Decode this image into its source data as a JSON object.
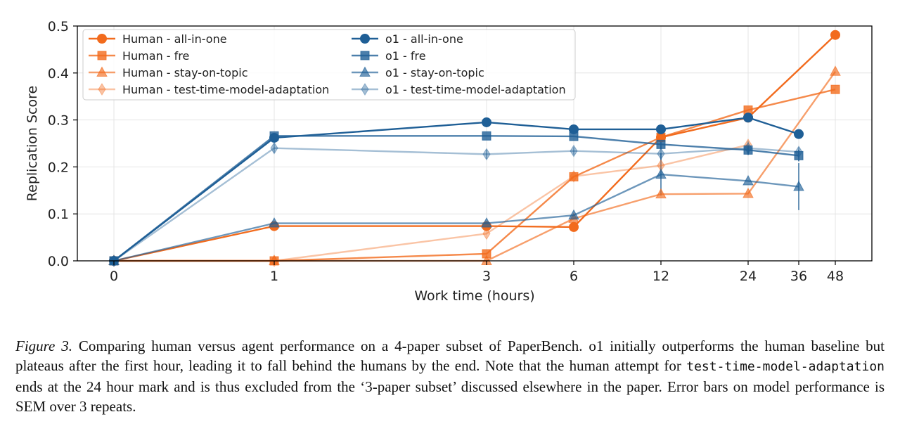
{
  "chart_data": {
    "type": "line",
    "xlabel": "Work time (hours)",
    "ylabel": "Replication Score",
    "xticks": [
      "0",
      "1",
      "3",
      "6",
      "12",
      "24",
      "36",
      "48"
    ],
    "yticks": [
      "0.0",
      "0.1",
      "0.2",
      "0.3",
      "0.4",
      "0.5"
    ],
    "ylim": [
      0,
      0.5
    ],
    "grid": true,
    "legend_position": "top-left",
    "series": [
      {
        "name": "Human - all-in-one",
        "marker": "circle",
        "color": "#f26b1d",
        "opacity": 1.0,
        "x": [
          "0",
          "1",
          "3",
          "6",
          "12",
          "24",
          "48"
        ],
        "y": [
          0.0,
          0.074,
          0.074,
          0.072,
          0.263,
          0.305,
          0.481
        ]
      },
      {
        "name": "Human - fre",
        "marker": "square",
        "color": "#f26b1d",
        "opacity": 0.8,
        "x": [
          "0",
          "1",
          "3",
          "6",
          "12",
          "24",
          "48"
        ],
        "y": [
          0.0,
          0.0,
          0.015,
          0.179,
          0.263,
          0.321,
          0.365
        ]
      },
      {
        "name": "Human - stay-on-topic",
        "marker": "triangle",
        "color": "#f26b1d",
        "opacity": 0.65,
        "x": [
          "0",
          "1",
          "3",
          "6",
          "12",
          "24",
          "48"
        ],
        "y": [
          0.0,
          0.0,
          0.0,
          0.09,
          0.142,
          0.143,
          0.403
        ]
      },
      {
        "name": "Human - test-time-model-adaptation",
        "marker": "diamond",
        "color": "#f26b1d",
        "opacity": 0.4,
        "x": [
          "0",
          "1",
          "3",
          "6",
          "12",
          "24"
        ],
        "y": [
          0.0,
          0.0,
          0.058,
          0.18,
          0.203,
          0.247
        ]
      },
      {
        "name": "o1  - all-in-one",
        "marker": "circle",
        "color": "#1f5f96",
        "opacity": 1.0,
        "x": [
          "0",
          "1",
          "3",
          "6",
          "12",
          "24",
          "36"
        ],
        "y": [
          0.0,
          0.262,
          0.295,
          0.28,
          0.28,
          0.305,
          0.27
        ]
      },
      {
        "name": "o1  - fre",
        "marker": "square",
        "color": "#1f5f96",
        "opacity": 0.8,
        "x": [
          "0",
          "1",
          "3",
          "6",
          "12",
          "24",
          "36"
        ],
        "y": [
          0.0,
          0.266,
          0.266,
          0.265,
          0.248,
          0.236,
          0.224
        ],
        "err": [
          0,
          0,
          0,
          0,
          0.01,
          0.01,
          0.012
        ]
      },
      {
        "name": "o1  - stay-on-topic",
        "marker": "triangle",
        "color": "#1f5f96",
        "opacity": 0.65,
        "x": [
          "0",
          "1",
          "3",
          "6",
          "12",
          "24",
          "36"
        ],
        "y": [
          0.0,
          0.08,
          0.08,
          0.097,
          0.184,
          0.17,
          0.158
        ],
        "err": [
          0,
          0,
          0,
          0,
          0.045,
          0,
          0.05
        ]
      },
      {
        "name": "o1  - test-time-model-adaptation",
        "marker": "diamond",
        "color": "#1f5f96",
        "opacity": 0.4,
        "x": [
          "0",
          "1",
          "3",
          "6",
          "12",
          "24",
          "36"
        ],
        "y": [
          0.0,
          0.24,
          0.227,
          0.234,
          0.228,
          0.24,
          0.232
        ],
        "err": [
          0,
          0.01,
          0.01,
          0.008,
          0.015,
          0.015,
          0.01
        ]
      }
    ]
  },
  "caption": {
    "figure_label": "Figure 3.",
    "part1": " Comparing human versus agent performance on a 4-paper subset of PaperBench.  o1 initially outperforms the human baseline but plateaus after the first hour, leading it to fall behind the humans by the end.  Note that the human attempt for ",
    "code": "test-time-model-adaptation",
    "part2": " ends at the 24 hour mark and is thus excluded from the ‘3-paper subset’ discussed elsewhere in the paper. Error bars on model performance is SEM over 3 repeats."
  }
}
